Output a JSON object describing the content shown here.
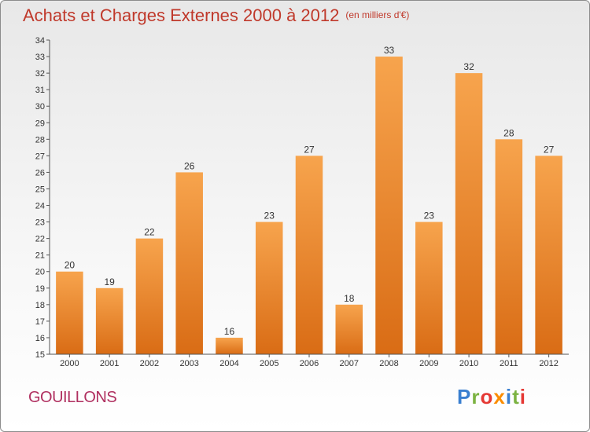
{
  "header": {
    "title": "Achats et Charges Externes 2000 à 2012",
    "unit": "(en milliers d'€)"
  },
  "footer": {
    "town": "GOUILLONS",
    "brand_letters": [
      {
        "ch": "P",
        "color": "#3a7fd0"
      },
      {
        "ch": "r",
        "color": "#7cb342"
      },
      {
        "ch": "o",
        "color": "#e53935"
      },
      {
        "ch": "x",
        "color": "#fb8c00"
      },
      {
        "ch": "i",
        "color": "#3a7fd0"
      },
      {
        "ch": "t",
        "color": "#7cb342"
      },
      {
        "ch": "i",
        "color": "#e53935"
      }
    ]
  },
  "chart_data": {
    "type": "bar",
    "title": "Achats et Charges Externes 2000 à 2012",
    "subtitle": "(en milliers d'€)",
    "xlabel": "",
    "ylabel": "",
    "categories": [
      "2000",
      "2001",
      "2002",
      "2003",
      "2004",
      "2005",
      "2006",
      "2007",
      "2008",
      "2009",
      "2010",
      "2011",
      "2012"
    ],
    "values": [
      20,
      19,
      22,
      26,
      16,
      23,
      27,
      18,
      33,
      23,
      32,
      28,
      27
    ],
    "ylim": [
      15,
      34
    ],
    "ytick_step": 1,
    "grid": false,
    "legend": "none",
    "data_labels": true,
    "colors": {
      "bar_light": "#f7a44d",
      "bar_dark": "#d96c15",
      "axis": "#555555"
    }
  }
}
